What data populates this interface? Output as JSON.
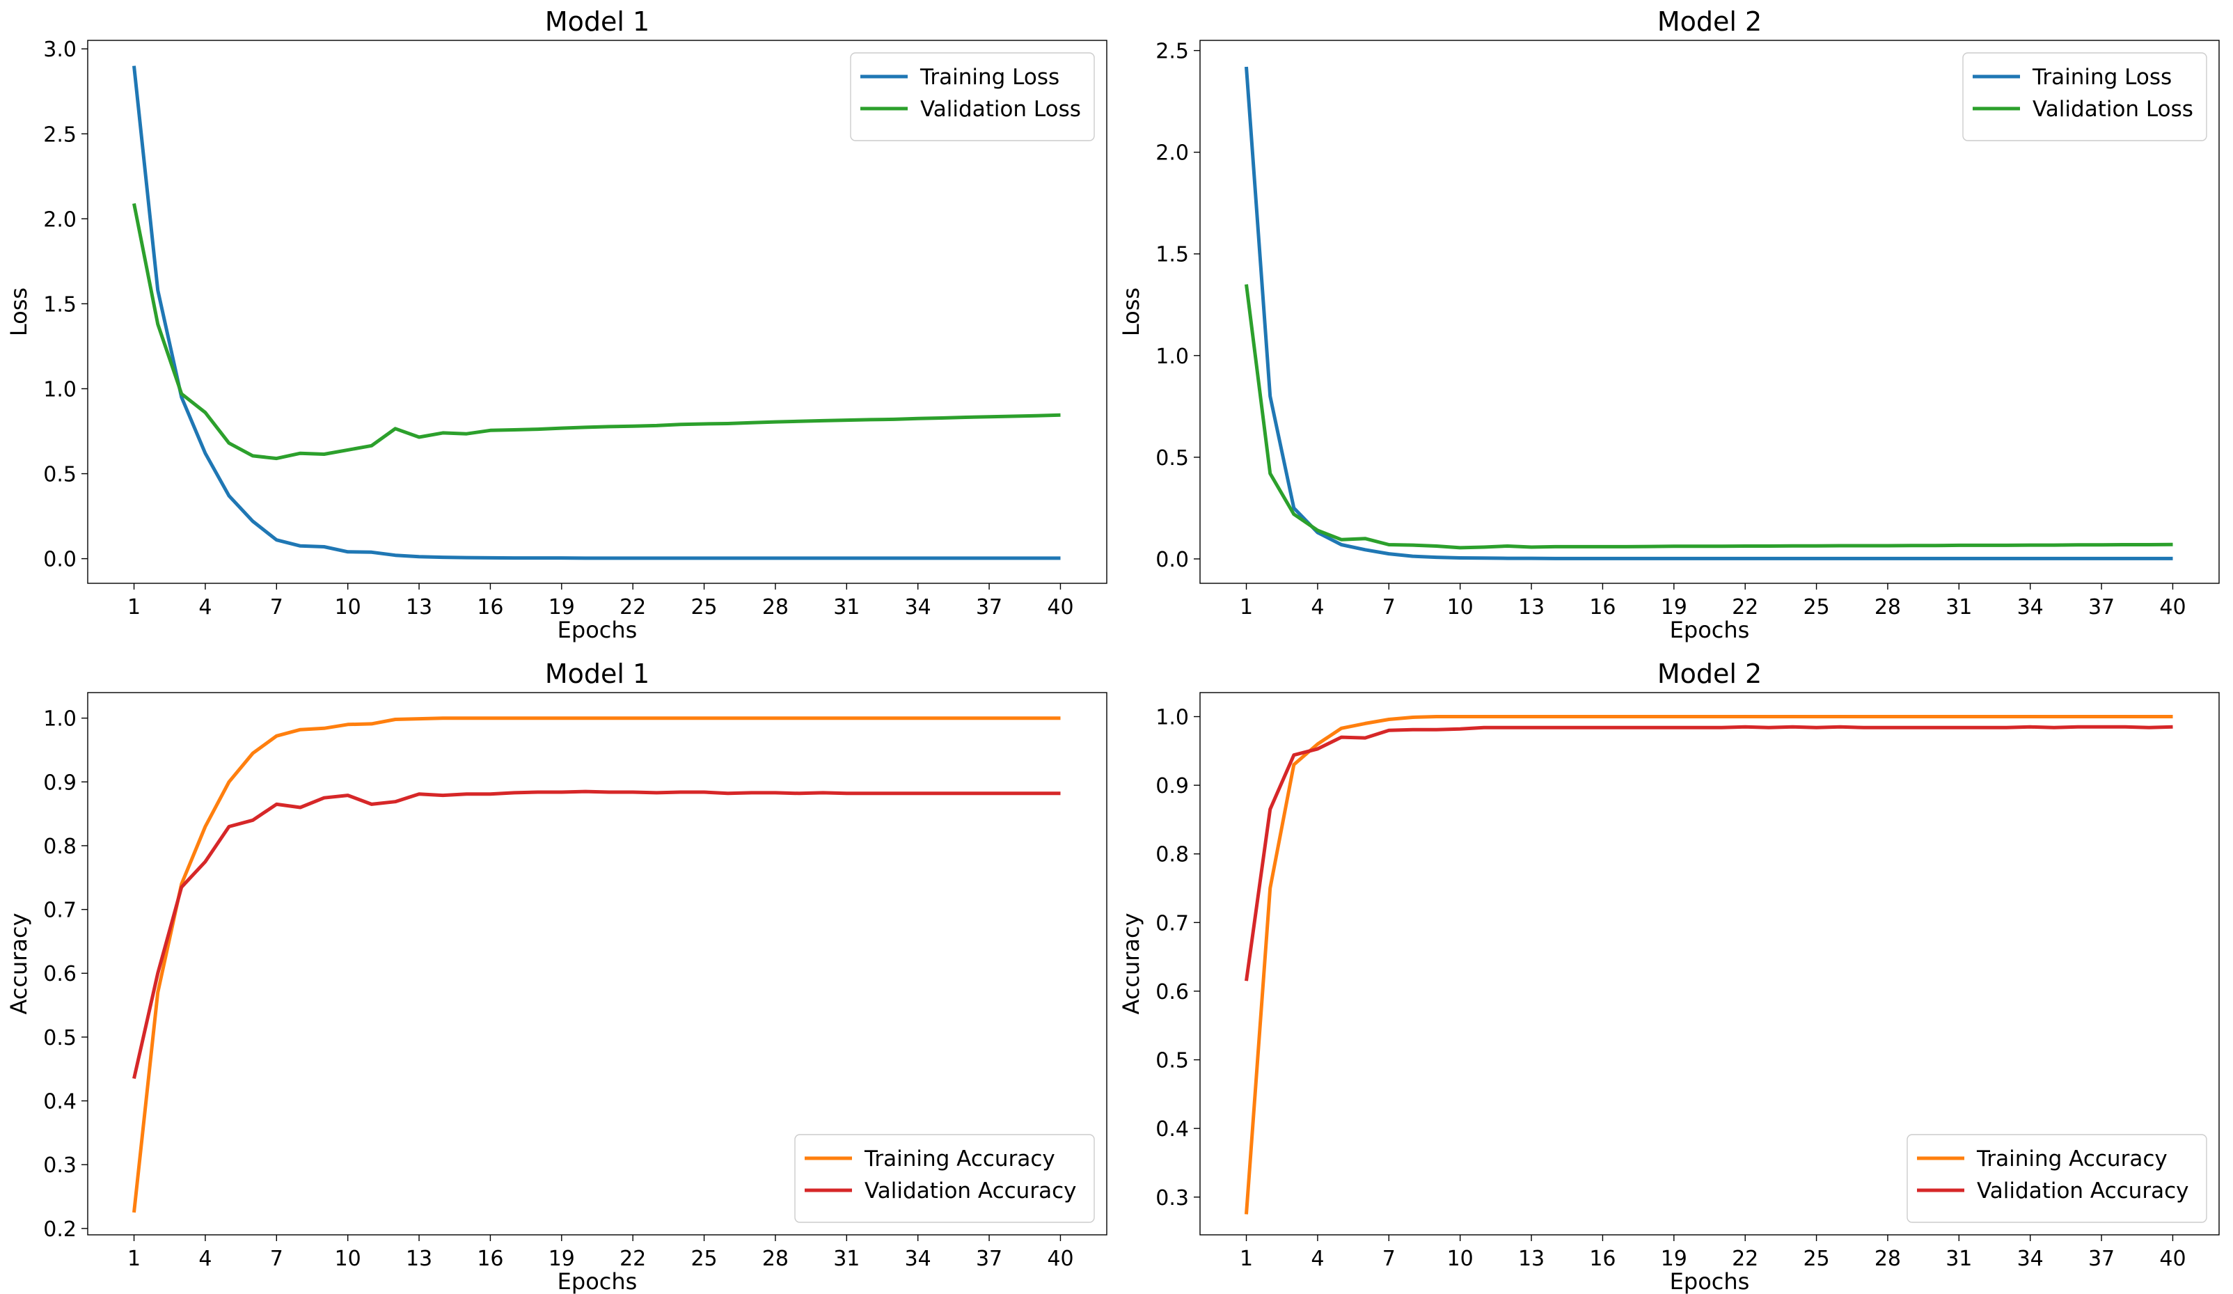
{
  "chart_data": [
    {
      "type": "line",
      "title": "Model 1",
      "xlabel": "Epochs",
      "ylabel": "Loss",
      "xlim": [
        -0.95,
        41.95
      ],
      "ylim": [
        -0.145,
        3.05
      ],
      "xticks": [
        1,
        4,
        7,
        10,
        13,
        16,
        19,
        22,
        25,
        28,
        31,
        34,
        37,
        40
      ],
      "yticks": [
        0.0,
        0.5,
        1.0,
        1.5,
        2.0,
        2.5,
        3.0
      ],
      "ytick_labels": [
        "0.0",
        "0.5",
        "1.0",
        "1.5",
        "2.0",
        "2.5",
        "3.0"
      ],
      "legend_position": "upper right",
      "x": [
        1,
        2,
        3,
        4,
        5,
        6,
        7,
        8,
        9,
        10,
        11,
        12,
        13,
        14,
        15,
        16,
        17,
        18,
        19,
        20,
        21,
        22,
        23,
        24,
        25,
        26,
        27,
        28,
        29,
        30,
        31,
        32,
        33,
        34,
        35,
        36,
        37,
        38,
        39,
        40
      ],
      "series": [
        {
          "name": "Training Loss",
          "color": "#1f77b4",
          "values": [
            2.9,
            1.58,
            0.95,
            0.62,
            0.37,
            0.22,
            0.11,
            0.075,
            0.07,
            0.04,
            0.038,
            0.02,
            0.012,
            0.008,
            0.006,
            0.005,
            0.004,
            0.004,
            0.004,
            0.003,
            0.003,
            0.003,
            0.003,
            0.003,
            0.003,
            0.003,
            0.003,
            0.003,
            0.003,
            0.003,
            0.003,
            0.003,
            0.003,
            0.003,
            0.003,
            0.003,
            0.003,
            0.003,
            0.003,
            0.003
          ]
        },
        {
          "name": "Validation Loss",
          "color": "#2ca02c",
          "values": [
            2.09,
            1.38,
            0.97,
            0.86,
            0.68,
            0.605,
            0.59,
            0.62,
            0.615,
            0.64,
            0.665,
            0.765,
            0.715,
            0.74,
            0.735,
            0.755,
            0.758,
            0.762,
            0.768,
            0.773,
            0.777,
            0.78,
            0.783,
            0.79,
            0.793,
            0.795,
            0.8,
            0.805,
            0.808,
            0.812,
            0.815,
            0.818,
            0.82,
            0.825,
            0.828,
            0.832,
            0.835,
            0.838,
            0.841,
            0.845
          ]
        }
      ]
    },
    {
      "type": "line",
      "title": "Model 2",
      "xlabel": "Epochs",
      "ylabel": "Loss",
      "xlim": [
        -0.95,
        41.95
      ],
      "ylim": [
        -0.12,
        2.55
      ],
      "xticks": [
        1,
        4,
        7,
        10,
        13,
        16,
        19,
        22,
        25,
        28,
        31,
        34,
        37,
        40
      ],
      "yticks": [
        0.0,
        0.5,
        1.0,
        1.5,
        2.0,
        2.5
      ],
      "ytick_labels": [
        "0.0",
        "0.5",
        "1.0",
        "1.5",
        "2.0",
        "2.5"
      ],
      "legend_position": "upper right",
      "x": [
        1,
        2,
        3,
        4,
        5,
        6,
        7,
        8,
        9,
        10,
        11,
        12,
        13,
        14,
        15,
        16,
        17,
        18,
        19,
        20,
        21,
        22,
        23,
        24,
        25,
        26,
        27,
        28,
        29,
        30,
        31,
        32,
        33,
        34,
        35,
        36,
        37,
        38,
        39,
        40
      ],
      "series": [
        {
          "name": "Training Loss",
          "color": "#1f77b4",
          "values": [
            2.42,
            0.8,
            0.25,
            0.13,
            0.07,
            0.045,
            0.025,
            0.013,
            0.008,
            0.005,
            0.004,
            0.003,
            0.003,
            0.002,
            0.002,
            0.002,
            0.002,
            0.002,
            0.002,
            0.002,
            0.002,
            0.002,
            0.002,
            0.002,
            0.002,
            0.002,
            0.002,
            0.002,
            0.002,
            0.002,
            0.002,
            0.002,
            0.002,
            0.002,
            0.002,
            0.002,
            0.002,
            0.002,
            0.002,
            0.002
          ]
        },
        {
          "name": "Validation Loss",
          "color": "#2ca02c",
          "values": [
            1.35,
            0.42,
            0.22,
            0.14,
            0.095,
            0.1,
            0.07,
            0.068,
            0.063,
            0.055,
            0.058,
            0.063,
            0.058,
            0.06,
            0.06,
            0.06,
            0.06,
            0.061,
            0.062,
            0.062,
            0.062,
            0.063,
            0.063,
            0.064,
            0.064,
            0.065,
            0.065,
            0.065,
            0.066,
            0.066,
            0.067,
            0.067,
            0.067,
            0.068,
            0.068,
            0.069,
            0.069,
            0.07,
            0.07,
            0.071
          ]
        }
      ]
    },
    {
      "type": "line",
      "title": "Model 1",
      "xlabel": "Epochs",
      "ylabel": "Accuracy",
      "xlim": [
        -0.95,
        41.95
      ],
      "ylim": [
        0.19,
        1.04
      ],
      "xticks": [
        1,
        4,
        7,
        10,
        13,
        16,
        19,
        22,
        25,
        28,
        31,
        34,
        37,
        40
      ],
      "yticks": [
        0.2,
        0.3,
        0.4,
        0.5,
        0.6,
        0.7,
        0.8,
        0.9,
        1.0
      ],
      "ytick_labels": [
        "0.2",
        "0.3",
        "0.4",
        "0.5",
        "0.6",
        "0.7",
        "0.8",
        "0.9",
        "1.0"
      ],
      "legend_position": "lower right",
      "x": [
        1,
        2,
        3,
        4,
        5,
        6,
        7,
        8,
        9,
        10,
        11,
        12,
        13,
        14,
        15,
        16,
        17,
        18,
        19,
        20,
        21,
        22,
        23,
        24,
        25,
        26,
        27,
        28,
        29,
        30,
        31,
        32,
        33,
        34,
        35,
        36,
        37,
        38,
        39,
        40
      ],
      "series": [
        {
          "name": "Training Accuracy",
          "color": "#ff7f0e",
          "values": [
            0.225,
            0.57,
            0.74,
            0.83,
            0.9,
            0.945,
            0.972,
            0.982,
            0.984,
            0.99,
            0.991,
            0.998,
            0.999,
            1.0,
            1.0,
            1.0,
            1.0,
            1.0,
            1.0,
            1.0,
            1.0,
            1.0,
            1.0,
            1.0,
            1.0,
            1.0,
            1.0,
            1.0,
            1.0,
            1.0,
            1.0,
            1.0,
            1.0,
            1.0,
            1.0,
            1.0,
            1.0,
            1.0,
            1.0,
            1.0
          ]
        },
        {
          "name": "Validation Accuracy",
          "color": "#d62728",
          "values": [
            0.435,
            0.6,
            0.735,
            0.775,
            0.83,
            0.84,
            0.865,
            0.86,
            0.875,
            0.879,
            0.865,
            0.869,
            0.881,
            0.879,
            0.881,
            0.881,
            0.883,
            0.884,
            0.884,
            0.885,
            0.884,
            0.884,
            0.883,
            0.884,
            0.884,
            0.882,
            0.883,
            0.883,
            0.882,
            0.883,
            0.882,
            0.882,
            0.882,
            0.882,
            0.882,
            0.882,
            0.882,
            0.882,
            0.882,
            0.882
          ]
        }
      ]
    },
    {
      "type": "line",
      "title": "Model 2",
      "xlabel": "Epochs",
      "ylabel": "Accuracy",
      "xlim": [
        -0.95,
        41.95
      ],
      "ylim": [
        0.245,
        1.035
      ],
      "xticks": [
        1,
        4,
        7,
        10,
        13,
        16,
        19,
        22,
        25,
        28,
        31,
        34,
        37,
        40
      ],
      "yticks": [
        0.3,
        0.4,
        0.5,
        0.6,
        0.7,
        0.8,
        0.9,
        1.0
      ],
      "ytick_labels": [
        "0.3",
        "0.4",
        "0.5",
        "0.6",
        "0.7",
        "0.8",
        "0.9",
        "1.0"
      ],
      "legend_position": "lower right",
      "x": [
        1,
        2,
        3,
        4,
        5,
        6,
        7,
        8,
        9,
        10,
        11,
        12,
        13,
        14,
        15,
        16,
        17,
        18,
        19,
        20,
        21,
        22,
        23,
        24,
        25,
        26,
        27,
        28,
        29,
        30,
        31,
        32,
        33,
        34,
        35,
        36,
        37,
        38,
        39,
        40
      ],
      "series": [
        {
          "name": "Training Accuracy",
          "color": "#ff7f0e",
          "values": [
            0.275,
            0.75,
            0.93,
            0.96,
            0.983,
            0.99,
            0.996,
            0.999,
            1.0,
            1.0,
            1.0,
            1.0,
            1.0,
            1.0,
            1.0,
            1.0,
            1.0,
            1.0,
            1.0,
            1.0,
            1.0,
            1.0,
            1.0,
            1.0,
            1.0,
            1.0,
            1.0,
            1.0,
            1.0,
            1.0,
            1.0,
            1.0,
            1.0,
            1.0,
            1.0,
            1.0,
            1.0,
            1.0,
            1.0,
            1.0
          ]
        },
        {
          "name": "Validation Accuracy",
          "color": "#d62728",
          "values": [
            0.615,
            0.865,
            0.944,
            0.953,
            0.97,
            0.969,
            0.98,
            0.981,
            0.981,
            0.982,
            0.984,
            0.984,
            0.984,
            0.984,
            0.984,
            0.984,
            0.984,
            0.984,
            0.984,
            0.984,
            0.984,
            0.985,
            0.984,
            0.985,
            0.984,
            0.985,
            0.984,
            0.984,
            0.984,
            0.984,
            0.984,
            0.984,
            0.984,
            0.985,
            0.984,
            0.985,
            0.985,
            0.985,
            0.984,
            0.985
          ]
        }
      ]
    }
  ]
}
